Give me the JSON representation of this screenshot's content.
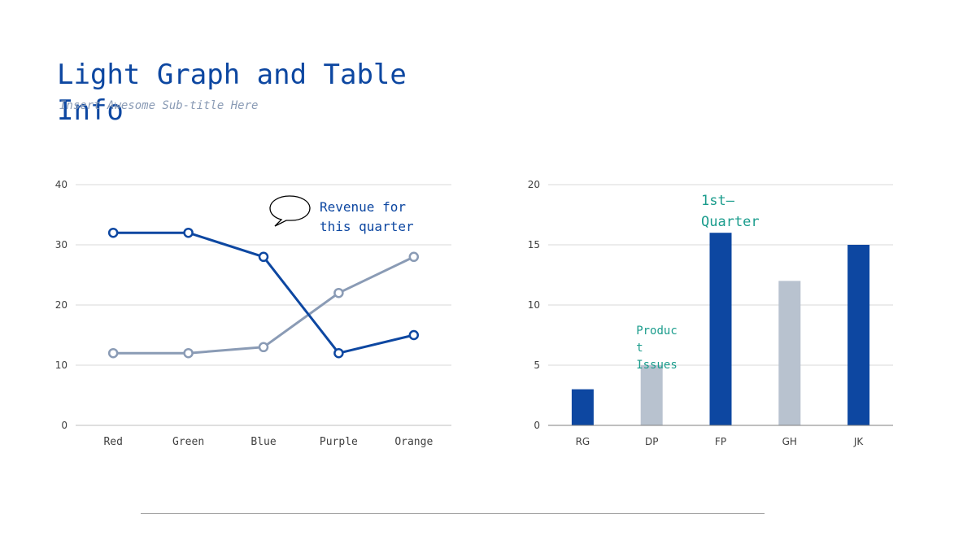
{
  "slide": {
    "title": "Light Graph and Table Info",
    "subtitle": "Insert Awesome Sub-title Here"
  },
  "colors": {
    "primary": "#0d47a1",
    "secondary": "#8a9bb5",
    "bar_light": "#b8c2cf",
    "accent_teal": "#1a9c8c",
    "grid": "#d9d9d9"
  },
  "chart_data": [
    {
      "type": "line",
      "categories": [
        "Red",
        "Green",
        "Blue",
        "Purple",
        "Orange"
      ],
      "series": [
        {
          "values": [
            32,
            32,
            28,
            12,
            15
          ],
          "color": "#0d47a1"
        },
        {
          "values": [
            12,
            12,
            13,
            22,
            28
          ],
          "color": "#8a9bb5"
        }
      ],
      "ylim": [
        0,
        40
      ],
      "yticks": [
        0,
        10,
        20,
        30,
        40
      ],
      "grid": true,
      "annotations": [
        {
          "text_lines": [
            "Revenue for",
            "this quarter"
          ],
          "icon": "speech-bubble-icon"
        }
      ]
    },
    {
      "type": "bar",
      "categories": [
        "RG",
        "DP",
        "FP",
        "GH",
        "JK"
      ],
      "values": [
        3,
        5,
        16,
        12,
        15
      ],
      "bar_colors": [
        "#0d47a1",
        "#b8c2cf",
        "#0d47a1",
        "#b8c2cf",
        "#0d47a1"
      ],
      "ylim": [
        0,
        20
      ],
      "yticks": [
        0,
        5,
        10,
        15,
        20
      ],
      "grid": true,
      "annotations": [
        {
          "text_lines": [
            "1st—",
            "Quarter"
          ],
          "category": "FP"
        },
        {
          "text_lines": [
            "Produc",
            "t",
            "Issues"
          ],
          "category": "DP"
        }
      ]
    }
  ]
}
